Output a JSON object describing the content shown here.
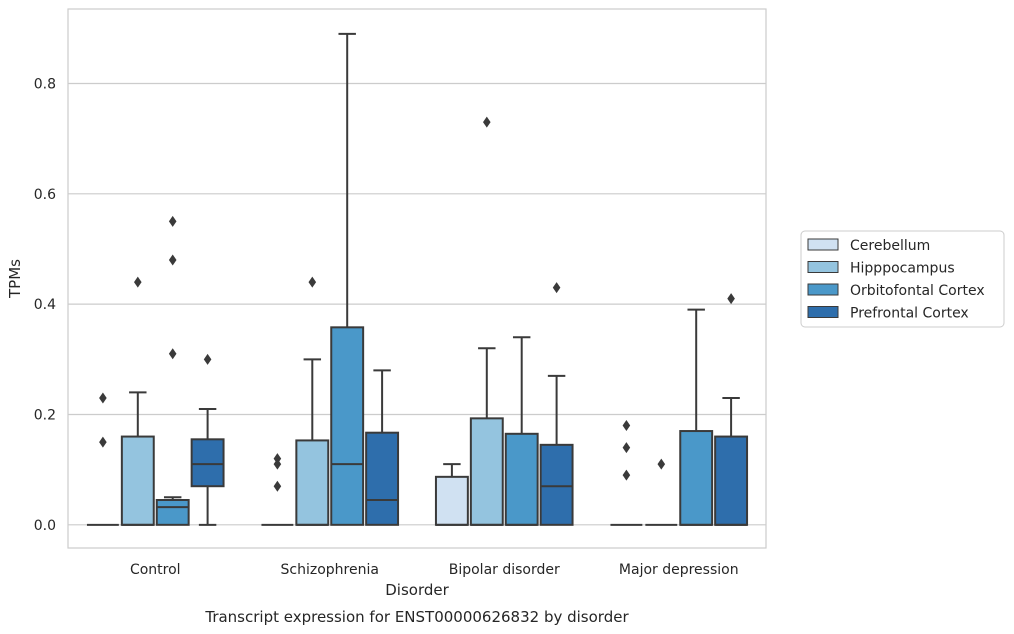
{
  "chart_data": {
    "type": "box",
    "title": "",
    "caption": "Transcript expression for ENST00000626832 by disorder",
    "xlabel": "Disorder",
    "ylabel": "TPMs",
    "ylim": [
      -0.042,
      0.935
    ],
    "yticks": [
      0.0,
      0.2,
      0.4,
      0.6,
      0.8
    ],
    "ytick_labels": [
      "0.0",
      "0.2",
      "0.4",
      "0.6",
      "0.8"
    ],
    "grid": "horizontal",
    "legend_position": "right",
    "categories": [
      "Control",
      "Schizophrenia",
      "Bipolar disorder",
      "Major depression"
    ],
    "series": [
      {
        "name": "Cerebellum",
        "color": "#d0e1f2",
        "boxes": [
          {
            "q1": 0.0,
            "median": 0.0,
            "q3": 0.0,
            "whisker_low": 0.0,
            "whisker_high": 0.0,
            "outliers": [
              0.15,
              0.23
            ]
          },
          {
            "q1": 0.0,
            "median": 0.0,
            "q3": 0.0,
            "whisker_low": 0.0,
            "whisker_high": 0.0,
            "outliers": [
              0.07,
              0.11,
              0.12
            ]
          },
          {
            "q1": 0.0,
            "median": 0.0,
            "q3": 0.087,
            "whisker_low": 0.0,
            "whisker_high": 0.11,
            "outliers": []
          },
          {
            "q1": 0.0,
            "median": 0.0,
            "q3": 0.0,
            "whisker_low": 0.0,
            "whisker_high": 0.0,
            "outliers": [
              0.09,
              0.14,
              0.18
            ]
          }
        ]
      },
      {
        "name": "Hipppocampus",
        "color": "#94c4df",
        "boxes": [
          {
            "q1": 0.0,
            "median": 0.0,
            "q3": 0.16,
            "whisker_low": 0.0,
            "whisker_high": 0.24,
            "outliers": [
              0.44
            ]
          },
          {
            "q1": 0.0,
            "median": 0.0,
            "q3": 0.153,
            "whisker_low": 0.0,
            "whisker_high": 0.3,
            "outliers": [
              0.44
            ]
          },
          {
            "q1": 0.0,
            "median": 0.0,
            "q3": 0.193,
            "whisker_low": 0.0,
            "whisker_high": 0.32,
            "outliers": [
              0.73
            ]
          },
          {
            "q1": 0.0,
            "median": 0.0,
            "q3": 0.0,
            "whisker_low": 0.0,
            "whisker_high": 0.0,
            "outliers": [
              0.11
            ]
          }
        ]
      },
      {
        "name": "Orbitofontal Cortex",
        "color": "#4a98c9",
        "boxes": [
          {
            "q1": 0.0,
            "median": 0.032,
            "q3": 0.045,
            "whisker_low": 0.0,
            "whisker_high": 0.05,
            "outliers": [
              0.31,
              0.48,
              0.55
            ]
          },
          {
            "q1": 0.0,
            "median": 0.11,
            "q3": 0.358,
            "whisker_low": 0.0,
            "whisker_high": 0.89,
            "outliers": []
          },
          {
            "q1": 0.0,
            "median": 0.0,
            "q3": 0.165,
            "whisker_low": 0.0,
            "whisker_high": 0.34,
            "outliers": []
          },
          {
            "q1": 0.0,
            "median": 0.0,
            "q3": 0.17,
            "whisker_low": 0.0,
            "whisker_high": 0.39,
            "outliers": []
          }
        ]
      },
      {
        "name": "Prefrontal Cortex",
        "color": "#2e6eac",
        "boxes": [
          {
            "q1": 0.07,
            "median": 0.11,
            "q3": 0.155,
            "whisker_low": 0.0,
            "whisker_high": 0.21,
            "outliers": [
              0.3
            ]
          },
          {
            "q1": 0.0,
            "median": 0.045,
            "q3": 0.167,
            "whisker_low": 0.0,
            "whisker_high": 0.28,
            "outliers": []
          },
          {
            "q1": 0.0,
            "median": 0.07,
            "q3": 0.145,
            "whisker_low": 0.0,
            "whisker_high": 0.27,
            "outliers": [
              0.43
            ]
          },
          {
            "q1": 0.0,
            "median": 0.0,
            "q3": 0.16,
            "whisker_low": 0.0,
            "whisker_high": 0.23,
            "outliers": [
              0.41
            ]
          }
        ]
      }
    ]
  }
}
